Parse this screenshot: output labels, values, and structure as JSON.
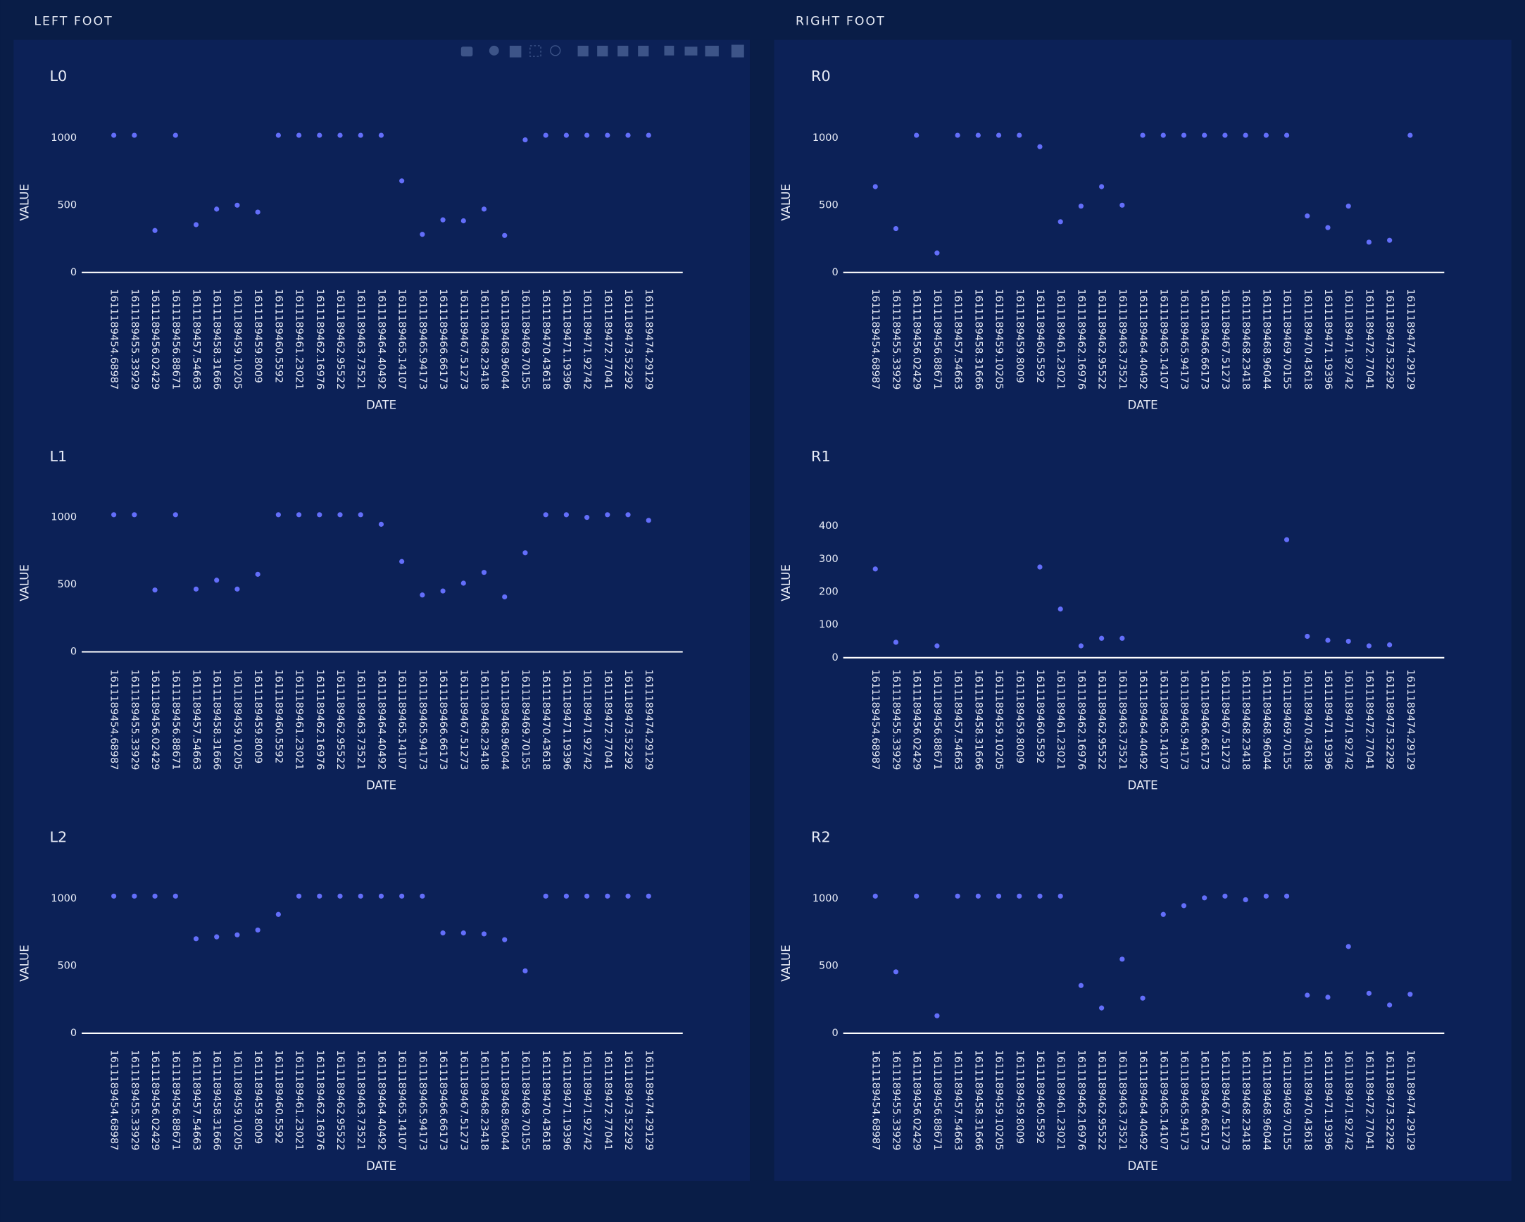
{
  "header": {
    "left": "LEFT FOOT",
    "right": "RIGHT FOOT"
  },
  "chart_data": [
    {
      "type": "scatter",
      "title": "L0",
      "xlabel": "DATE",
      "ylabel": "VALUE",
      "color": "#636efa",
      "zeroline": true,
      "categories": [
        "1611189454.68987",
        "1611189455.33929",
        "1611189456.02429",
        "1611189456.88671",
        "1611189457.54663",
        "1611189458.31666",
        "1611189459.10205",
        "1611189459.8009",
        "1611189460.5592",
        "1611189461.23021",
        "1611189462.16976",
        "1611189462.95522",
        "1611189463.73521",
        "1611189464.40492",
        "1611189465.14107",
        "1611189465.94173",
        "1611189466.66173",
        "1611189467.51273",
        "1611189468.23418",
        "1611189468.96044",
        "1611189469.70155",
        "1611189470.43618",
        "1611189471.19396",
        "1611189471.92742",
        "1611189472.77041",
        "1611189473.52292",
        "1611189474.29129"
      ],
      "values": [
        1020,
        1020,
        312,
        1020,
        355,
        471,
        500,
        449,
        1020,
        1020,
        1020,
        1020,
        1020,
        1020,
        681,
        283,
        391,
        384,
        471,
        275,
        986,
        1020,
        1020,
        1020,
        1020,
        1020,
        1020
      ],
      "ylim": [
        0,
        1100
      ],
      "yticks": [
        0,
        500,
        1000
      ]
    },
    {
      "type": "scatter",
      "title": "L1",
      "xlabel": "DATE",
      "ylabel": "VALUE",
      "color": "#636efa",
      "zeroline": true,
      "categories": [
        "1611189454.68987",
        "1611189455.33929",
        "1611189456.02429",
        "1611189456.88671",
        "1611189457.54663",
        "1611189458.31666",
        "1611189459.10205",
        "1611189459.8009",
        "1611189460.5592",
        "1611189461.23021",
        "1611189462.16976",
        "1611189462.95522",
        "1611189463.73521",
        "1611189464.40492",
        "1611189465.14107",
        "1611189465.94173",
        "1611189466.66173",
        "1611189467.51273",
        "1611189468.23418",
        "1611189468.96044",
        "1611189469.70155",
        "1611189470.43618",
        "1611189471.19396",
        "1611189471.92742",
        "1611189472.77041",
        "1611189473.52292",
        "1611189474.29129"
      ],
      "values": [
        1020,
        1020,
        460,
        1020,
        467,
        533,
        467,
        577,
        1020,
        1020,
        1020,
        1020,
        1020,
        949,
        672,
        423,
        453,
        511,
        591,
        409,
        737,
        1020,
        1020,
        1000,
        1020,
        1020,
        978
      ],
      "ylim": [
        0,
        1100
      ],
      "yticks": [
        0,
        500,
        1000
      ]
    },
    {
      "type": "scatter",
      "title": "L2",
      "xlabel": "DATE",
      "ylabel": "VALUE",
      "color": "#636efa",
      "zeroline": true,
      "categories": [
        "1611189454.68987",
        "1611189455.33929",
        "1611189456.02429",
        "1611189456.88671",
        "1611189457.54663",
        "1611189458.31666",
        "1611189459.10205",
        "1611189459.8009",
        "1611189460.5592",
        "1611189461.23021",
        "1611189462.16976",
        "1611189462.95522",
        "1611189463.73521",
        "1611189464.40492",
        "1611189465.14107",
        "1611189465.94173",
        "1611189466.66173",
        "1611189467.51273",
        "1611189468.23418",
        "1611189468.96044",
        "1611189469.70155",
        "1611189470.43618",
        "1611189471.19396",
        "1611189471.92742",
        "1611189472.77041",
        "1611189473.52292",
        "1611189474.29129"
      ],
      "values": [
        1020,
        1020,
        1020,
        1020,
        703,
        717,
        732,
        768,
        884,
        1020,
        1020,
        1020,
        1020,
        1020,
        1020,
        1020,
        746,
        746,
        739,
        696,
        464,
        1020,
        1020,
        1020,
        1020,
        1020,
        1020
      ],
      "ylim": [
        0,
        1100
      ],
      "yticks": [
        0,
        500,
        1000
      ]
    },
    {
      "type": "scatter",
      "title": "R0",
      "xlabel": "DATE",
      "ylabel": "VALUE",
      "color": "#636efa",
      "zeroline": true,
      "categories": [
        "1611189454.68987",
        "1611189455.33929",
        "1611189456.02429",
        "1611189456.88671",
        "1611189457.54663",
        "1611189458.31666",
        "1611189459.10205",
        "1611189459.8009",
        "1611189460.5592",
        "1611189461.23021",
        "1611189462.16976",
        "1611189462.95522",
        "1611189463.73521",
        "1611189464.40492",
        "1611189465.14107",
        "1611189465.94173",
        "1611189466.66173",
        "1611189467.51273",
        "1611189468.23418",
        "1611189468.96044",
        "1611189469.70155",
        "1611189470.43618",
        "1611189471.19396",
        "1611189471.92742",
        "1611189472.77041",
        "1611189473.52292",
        "1611189474.29129"
      ],
      "values": [
        638,
        326,
        1020,
        145,
        1020,
        1020,
        1020,
        1020,
        935,
        377,
        493,
        638,
        500,
        1020,
        1020,
        1020,
        1020,
        1020,
        1020,
        1020,
        1020,
        420,
        333,
        493,
        225,
        239,
        1020
      ],
      "ylim": [
        0,
        1100
      ],
      "yticks": [
        0,
        500,
        1000
      ]
    },
    {
      "type": "scatter",
      "title": "R1",
      "xlabel": "DATE",
      "ylabel": "VALUE",
      "color": "#636efa",
      "zeroline": true,
      "categories": [
        "1611189454.68987",
        "1611189455.33929",
        "1611189456.02429",
        "1611189456.88671",
        "1611189457.54663",
        "1611189458.31666",
        "1611189459.10205",
        "1611189459.8009",
        "1611189460.5592",
        "1611189461.23021",
        "1611189462.16976",
        "1611189462.95522",
        "1611189463.73521",
        "1611189464.40492",
        "1611189465.14107",
        "1611189465.94173",
        "1611189466.66173",
        "1611189467.51273",
        "1611189468.23418",
        "1611189468.96044",
        "1611189469.70155",
        "1611189470.43618",
        "1611189471.19396",
        "1611189471.92742",
        "1611189472.77041",
        "1611189473.52292",
        "1611189474.29129"
      ],
      "values": [
        270,
        47,
        null,
        36,
        null,
        null,
        null,
        null,
        276,
        148,
        36,
        59,
        59,
        null,
        null,
        null,
        null,
        null,
        null,
        null,
        359,
        65,
        53,
        50,
        36,
        39,
        null
      ],
      "ylim": [
        0,
        450
      ],
      "yticks": [
        0,
        100,
        200,
        300,
        400
      ]
    },
    {
      "type": "scatter",
      "title": "R2",
      "xlabel": "DATE",
      "ylabel": "VALUE",
      "color": "#636efa",
      "zeroline": true,
      "categories": [
        "1611189454.68987",
        "1611189455.33929",
        "1611189456.02429",
        "1611189456.88671",
        "1611189457.54663",
        "1611189458.31666",
        "1611189459.10205",
        "1611189459.8009",
        "1611189460.5592",
        "1611189461.23021",
        "1611189462.16976",
        "1611189462.95522",
        "1611189463.73521",
        "1611189464.40492",
        "1611189465.14107",
        "1611189465.94173",
        "1611189466.66173",
        "1611189467.51273",
        "1611189468.23418",
        "1611189468.96044",
        "1611189469.70155",
        "1611189470.43618",
        "1611189471.19396",
        "1611189471.92742",
        "1611189472.77041",
        "1611189473.52292",
        "1611189474.29129"
      ],
      "values": [
        1020,
        457,
        1020,
        130,
        1020,
        1020,
        1020,
        1020,
        1020,
        1020,
        355,
        188,
        551,
        261,
        884,
        949,
        1007,
        1020,
        993,
        1020,
        1020,
        283,
        268,
        645,
        297,
        210,
        290
      ],
      "ylim": [
        0,
        1100
      ],
      "yticks": [
        0,
        500,
        1000
      ]
    }
  ]
}
